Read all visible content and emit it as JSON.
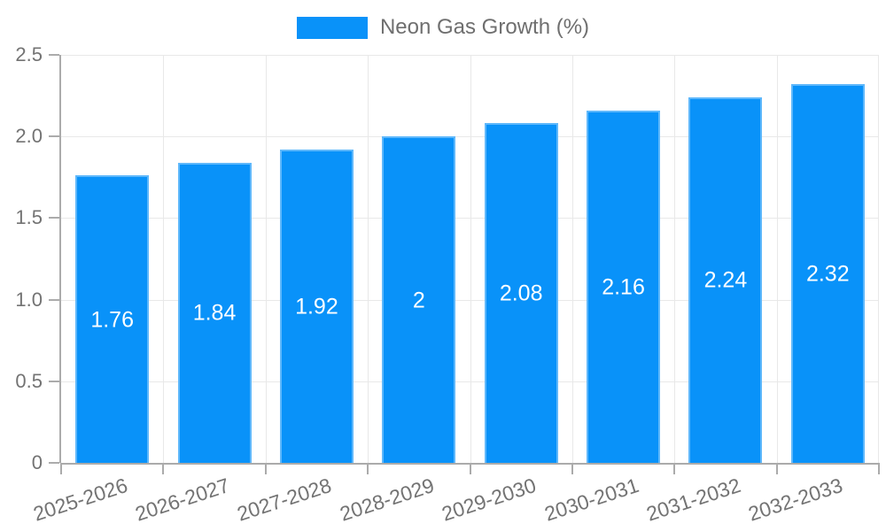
{
  "legend": {
    "label": "Neon Gas Growth (%)"
  },
  "chart_data": {
    "type": "bar",
    "title": "",
    "xlabel": "",
    "ylabel": "",
    "series_name": "Neon Gas Growth (%)",
    "categories": [
      "2025-2026",
      "2026-2027",
      "2027-2028",
      "2028-2029",
      "2029-2030",
      "2030-2031",
      "2031-2032",
      "2032-2033"
    ],
    "values": [
      1.76,
      1.84,
      1.92,
      2,
      2.08,
      2.16,
      2.24,
      2.32
    ],
    "value_labels": [
      "1.76",
      "1.84",
      "1.92",
      "2",
      "2.08",
      "2.16",
      "2.24",
      "2.32"
    ],
    "ylim": [
      0,
      2.5
    ],
    "yticks": [
      {
        "value": 0,
        "label": "0"
      },
      {
        "value": 0.5,
        "label": "0.5"
      },
      {
        "value": 1,
        "label": "1.0"
      },
      {
        "value": 1.5,
        "label": "1.5"
      },
      {
        "value": 2,
        "label": "2.0"
      },
      {
        "value": 2.5,
        "label": "2.5"
      }
    ],
    "grid": true,
    "legend_position": "top",
    "x_label_rotation_deg": -18,
    "colors": {
      "bar": "#0992f9",
      "bar_edge": "#5fb8fb",
      "value_label": "#ffffff",
      "grid": "#e8e8e8",
      "axis": "#ababab",
      "tick_label": "#737373",
      "legend_label": "#6f6f6f"
    }
  }
}
